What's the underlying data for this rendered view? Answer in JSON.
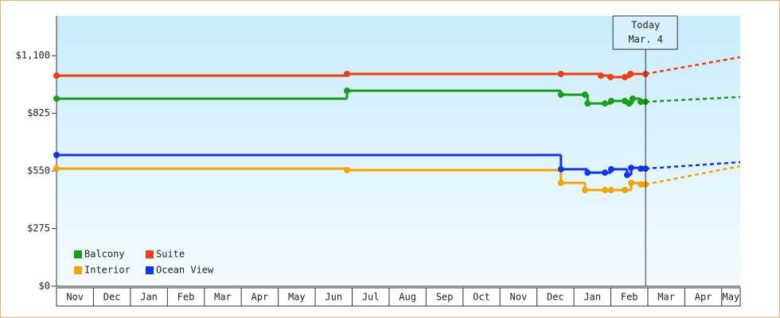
{
  "chart_data": {
    "type": "line",
    "step": true,
    "ylim": [
      0,
      1290
    ],
    "yticks": [
      {
        "value": 0,
        "label": "$0"
      },
      {
        "value": 275,
        "label": "$275"
      },
      {
        "value": 550,
        "label": "$550"
      },
      {
        "value": 825,
        "label": "$825"
      },
      {
        "value": 1100,
        "label": "$1,100"
      }
    ],
    "xlim": [
      0,
      18.5
    ],
    "xticks": [
      {
        "value": 0,
        "label": "Nov"
      },
      {
        "value": 1,
        "label": "Dec"
      },
      {
        "value": 2,
        "label": "Jan"
      },
      {
        "value": 3,
        "label": "Feb"
      },
      {
        "value": 4,
        "label": "Mar"
      },
      {
        "value": 5,
        "label": "Apr"
      },
      {
        "value": 6,
        "label": "May"
      },
      {
        "value": 7,
        "label": "Jun"
      },
      {
        "value": 8,
        "label": "Jul"
      },
      {
        "value": 9,
        "label": "Aug"
      },
      {
        "value": 10,
        "label": "Sep"
      },
      {
        "value": 11,
        "label": "Oct"
      },
      {
        "value": 12,
        "label": "Nov"
      },
      {
        "value": 13,
        "label": "Dec"
      },
      {
        "value": 14,
        "label": "Jan"
      },
      {
        "value": 15,
        "label": "Feb"
      },
      {
        "value": 16,
        "label": "Mar"
      },
      {
        "value": 17,
        "label": "Apr"
      },
      {
        "value": 18,
        "label": "May"
      }
    ],
    "annotation": {
      "x": 15.94,
      "lines": [
        "Today",
        "Mar. 4"
      ]
    },
    "series": [
      {
        "name": "Balcony",
        "color": "#16a016",
        "x": [
          0,
          7.86,
          13.65,
          14.3,
          14.37,
          14.84,
          15.01,
          15.38,
          15.49,
          15.59,
          15.81,
          15.94
        ],
        "values": [
          895,
          933,
          914,
          914,
          872,
          872,
          884,
          884,
          872,
          895,
          880,
          880
        ],
        "forecast": {
          "x": [
            15.94,
            18.5
          ],
          "values": [
            880,
            903
          ]
        }
      },
      {
        "name": "Suite",
        "color": "#f23c0c",
        "x": [
          0,
          7.86,
          13.65,
          14.73,
          14.99,
          15.38,
          15.53,
          15.94
        ],
        "values": [
          1005,
          1013,
          1013,
          1005,
          998,
          998,
          1013,
          1013
        ],
        "forecast": {
          "x": [
            15.94,
            18.5
          ],
          "values": [
            1013,
            1093
          ]
        }
      },
      {
        "name": "Interior",
        "color": "#f5a300",
        "x": [
          0,
          7.86,
          13.65,
          14.3,
          14.84,
          15.01,
          15.38,
          15.55,
          15.81,
          15.94
        ],
        "values": [
          561,
          554,
          493,
          459,
          459,
          459,
          459,
          493,
          486,
          486
        ],
        "forecast": {
          "x": [
            15.94,
            18.5
          ],
          "values": [
            486,
            573
          ]
        }
      },
      {
        "name": "Ocean View",
        "color": "#1035ee",
        "x": [
          0,
          13.65,
          14.37,
          14.84,
          15.01,
          15.44,
          15.55,
          15.81,
          15.94
        ],
        "values": [
          626,
          558,
          542,
          542,
          558,
          531,
          565,
          561,
          561
        ],
        "forecast": {
          "x": [
            15.94,
            18.5
          ],
          "values": [
            561,
            592
          ]
        }
      }
    ]
  }
}
